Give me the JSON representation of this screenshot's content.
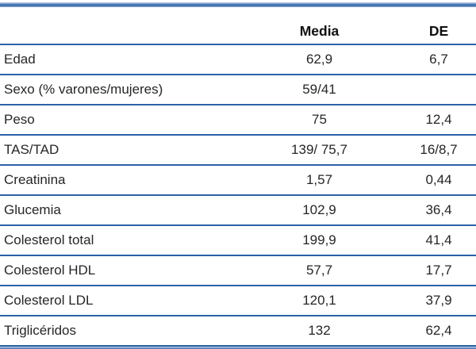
{
  "table": {
    "header": {
      "label": "",
      "media": "Media",
      "de": "DE"
    },
    "rows": [
      {
        "label": "Edad",
        "media": "62,9",
        "de": "6,7"
      },
      {
        "label": "Sexo (% varones/mujeres)",
        "media": "59/41",
        "de": ""
      },
      {
        "label": "Peso",
        "media": "75",
        "de": "12,4"
      },
      {
        "label": "TAS/TAD",
        "media": "139/ 75,7",
        "de": "16/8,7"
      },
      {
        "label": "Creatinina",
        "media": "1,57",
        "de": "0,44"
      },
      {
        "label": "Glucemia",
        "media": "102,9",
        "de": "36,4"
      },
      {
        "label": "Colesterol total",
        "media": "199,9",
        "de": "41,4"
      },
      {
        "label": "Colesterol HDL",
        "media": "57,7",
        "de": "17,7"
      },
      {
        "label": "Colesterol LDL",
        "media": "120,1",
        "de": "37,9"
      },
      {
        "label": "Triglicéridos",
        "media": "132",
        "de": "62,4"
      }
    ],
    "colors": {
      "rule_blue": "#2d61a8",
      "band_dark_blue": "#4d7db8",
      "band_light_blue": "#aac1de",
      "text": "#262626",
      "header_text": "#101010",
      "background": "#ffffff"
    }
  },
  "chart_data": {
    "type": "table",
    "title": "",
    "columns": [
      "",
      "Media",
      "DE"
    ],
    "rows": [
      [
        "Edad",
        "62,9",
        "6,7"
      ],
      [
        "Sexo (% varones/mujeres)",
        "59/41",
        ""
      ],
      [
        "Peso",
        "75",
        "12,4"
      ],
      [
        "TAS/TAD",
        "139/ 75,7",
        "16/8,7"
      ],
      [
        "Creatinina",
        "1,57",
        "0,44"
      ],
      [
        "Glucemia",
        "102,9",
        "36,4"
      ],
      [
        "Colesterol total",
        "199,9",
        "41,4"
      ],
      [
        "Colesterol HDL",
        "57,7",
        "17,7"
      ],
      [
        "Colesterol LDL",
        "120,1",
        "37,9"
      ],
      [
        "Triglicéridos",
        "132",
        "62,4"
      ]
    ]
  }
}
